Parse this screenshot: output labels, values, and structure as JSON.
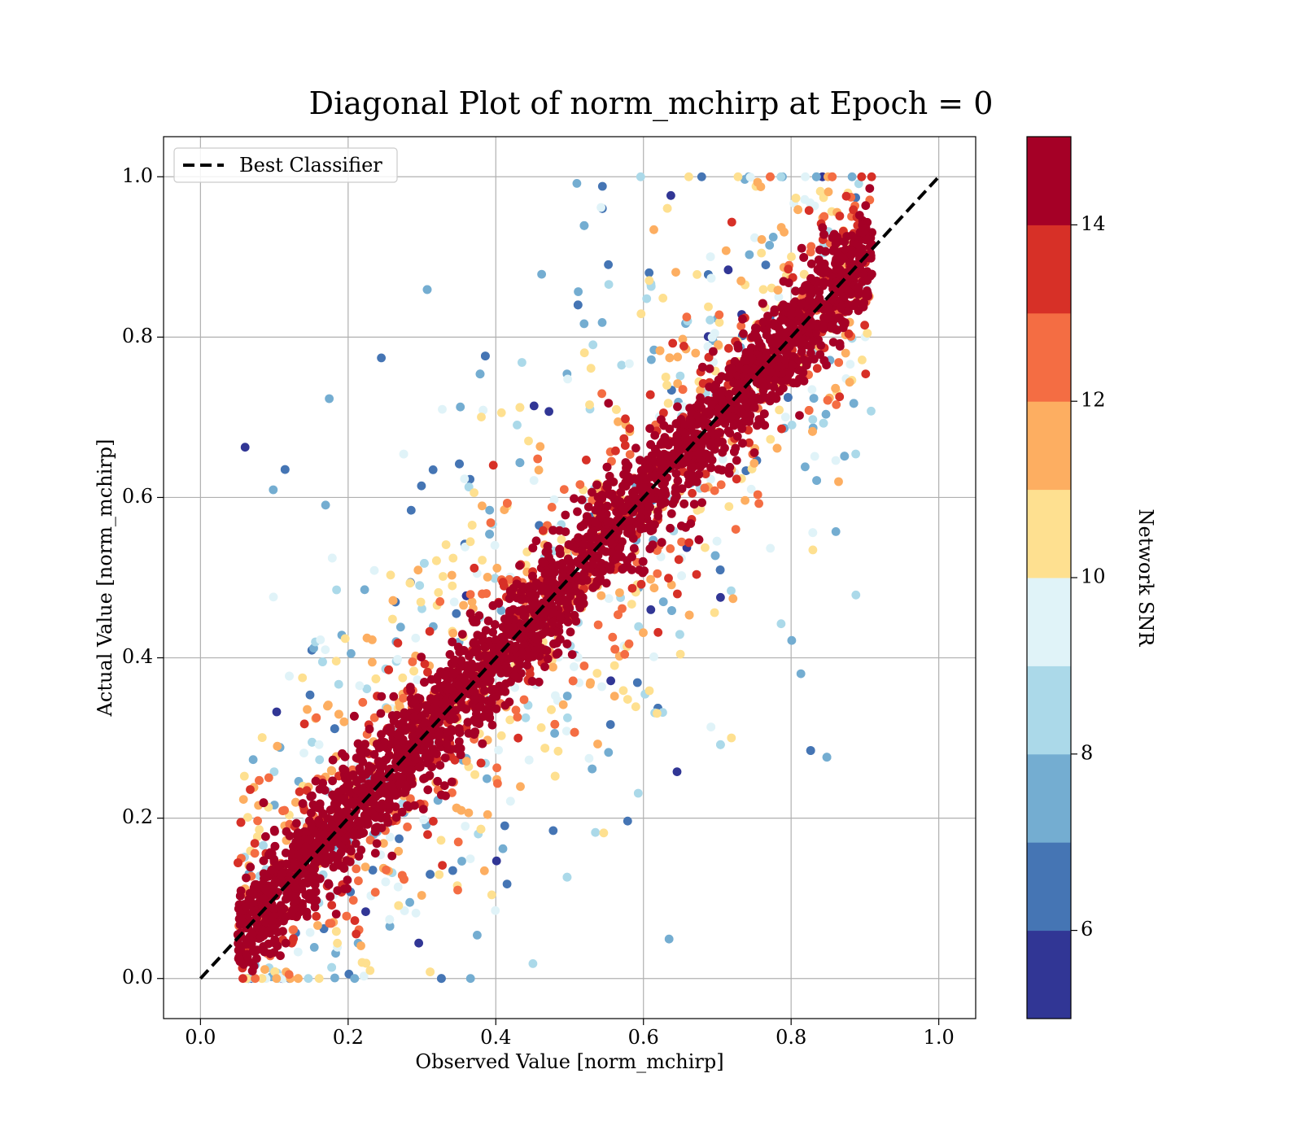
{
  "chart_data": {
    "type": "scatter",
    "title": "Diagonal Plot of norm_mchirp at Epoch = 0",
    "xlabel": "Observed Value [norm_mchirp]",
    "ylabel": "Actual Value [norm_mchirp]",
    "xlim": [
      -0.05,
      1.05
    ],
    "ylim": [
      -0.05,
      1.05
    ],
    "xticks": [
      0.0,
      0.2,
      0.4,
      0.6,
      0.8,
      1.0
    ],
    "yticks": [
      0.0,
      0.2,
      0.4,
      0.6,
      0.8,
      1.0
    ],
    "xtick_labels": [
      "0.0",
      "0.2",
      "0.4",
      "0.6",
      "0.8",
      "1.0"
    ],
    "ytick_labels": [
      "0.0",
      "0.2",
      "0.4",
      "0.6",
      "0.8",
      "1.0"
    ],
    "grid": true,
    "legend": {
      "placement": "top-left",
      "entries": [
        {
          "label": "Best Classifier",
          "style": "dashed",
          "color": "#000000"
        }
      ]
    },
    "reference_line": {
      "name": "Best Classifier",
      "x": [
        0.0,
        1.0
      ],
      "y": [
        0.0,
        1.0
      ]
    },
    "colorbar": {
      "label": "Network SNR",
      "range": [
        5,
        15
      ],
      "boundaries": [
        5,
        6,
        7,
        8,
        9,
        10,
        11,
        12,
        13,
        14,
        15
      ],
      "colors": [
        "#313695",
        "#4575b4",
        "#74add1",
        "#abd9e9",
        "#e0f3f8",
        "#fee090",
        "#fdae61",
        "#f46d43",
        "#d73027",
        "#a50026"
      ],
      "ticks": [
        6,
        8,
        10,
        12,
        14
      ],
      "tick_labels": [
        "6",
        "8",
        "10",
        "12",
        "14"
      ]
    },
    "scatter_model": {
      "description": "Dense cloud of points along the diagonal; high-SNR points hug the diagonal, low-SNR points spread further away.",
      "x_range": [
        0.05,
        0.91
      ],
      "y_range": [
        0.0,
        1.0
      ],
      "high_snr_band_halfwidth": 0.15,
      "max_spread": 0.5
    }
  }
}
